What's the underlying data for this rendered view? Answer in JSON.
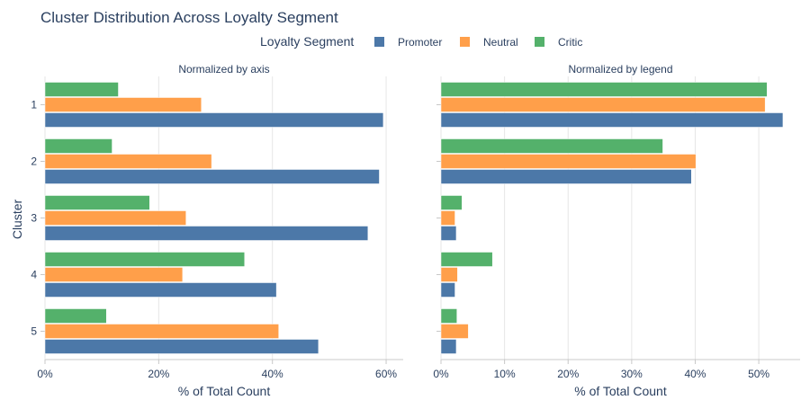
{
  "chart_data": {
    "type": "bar",
    "title": "Cluster Distribution Across Loyalty Segment",
    "legend": {
      "title": "Loyalty Segment",
      "placement": "top-center"
    },
    "y_axis_label": "Cluster",
    "categories": [
      "1",
      "2",
      "3",
      "4",
      "5"
    ],
    "series_meta": [
      {
        "name": "Promoter",
        "color": "#4c78a8"
      },
      {
        "name": "Neutral",
        "color": "#ff9f4a"
      },
      {
        "name": "Critic",
        "color": "#54b16b"
      }
    ],
    "panels": [
      {
        "subtitle": "Normalized by axis",
        "xlabel": "% of Total Count",
        "xlim": [
          0,
          63
        ],
        "ticks": [
          0,
          20,
          40,
          60
        ],
        "tick_labels": [
          "0%",
          "20%",
          "40%",
          "60%"
        ],
        "grid": true,
        "series": [
          {
            "name": "Promoter",
            "values": [
              59.5,
              58.8,
              56.8,
              40.7,
              48.1
            ]
          },
          {
            "name": "Neutral",
            "values": [
              27.5,
              29.3,
              24.8,
              24.2,
              41.1
            ]
          },
          {
            "name": "Critic",
            "values": [
              12.9,
              11.8,
              18.4,
              35.1,
              10.8
            ]
          }
        ]
      },
      {
        "subtitle": "Normalized by legend",
        "xlabel": "% of Total Count",
        "xlim": [
          0,
          56.5
        ],
        "ticks": [
          0,
          10,
          20,
          30,
          40,
          50
        ],
        "tick_labels": [
          "0%",
          "10%",
          "20%",
          "30%",
          "40%",
          "50%"
        ],
        "grid": true,
        "series": [
          {
            "name": "Promoter",
            "values": [
              53.8,
              39.4,
              2.4,
              2.2,
              2.4
            ]
          },
          {
            "name": "Neutral",
            "values": [
              51.0,
              40.1,
              2.2,
              2.6,
              4.3
            ]
          },
          {
            "name": "Critic",
            "values": [
              51.3,
              34.9,
              3.3,
              8.1,
              2.5
            ]
          }
        ]
      }
    ]
  }
}
